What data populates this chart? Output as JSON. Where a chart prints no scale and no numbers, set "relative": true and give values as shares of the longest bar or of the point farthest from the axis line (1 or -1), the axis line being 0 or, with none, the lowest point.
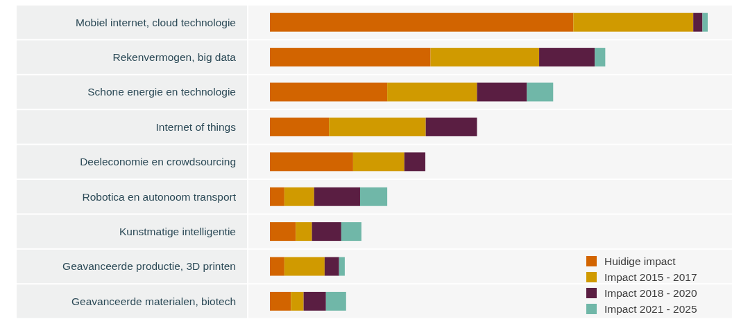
{
  "chart_data": {
    "type": "bar",
    "orientation": "horizontal",
    "stacked": true,
    "relative": true,
    "legend": "bottom right",
    "categories": [
      "Mobiel internet, cloud technologie",
      "Rekenvermogen, big data",
      "Schone energie en technologie",
      "Internet of things",
      "Deeleconomie en crowdsourcing",
      "Robotica en autonoom transport",
      "Kunstmatige intelligentie",
      "Geavanceerde productie, 3D printen",
      "Geavanceerde materialen, biotech"
    ],
    "series": [
      {
        "name": "Huidige impact",
        "color": "#d26400",
        "values": [
          0.693,
          0.367,
          0.268,
          0.135,
          0.19,
          0.033,
          0.059,
          0.033,
          0.048
        ]
      },
      {
        "name": "Impact 2015 - 2017",
        "color": "#d09a00",
        "values": [
          0.274,
          0.248,
          0.205,
          0.221,
          0.117,
          0.068,
          0.037,
          0.092,
          0.029
        ]
      },
      {
        "name": "Impact 2018 - 2020",
        "color": "#5a1e42",
        "values": [
          0.021,
          0.127,
          0.114,
          0.117,
          0.048,
          0.105,
          0.067,
          0.033,
          0.051
        ]
      },
      {
        "name": "Impact 2021 - 2025",
        "color": "#70b7a8",
        "values": [
          0.012,
          0.024,
          0.06,
          null,
          null,
          0.062,
          0.046,
          0.013,
          0.046
        ]
      }
    ]
  }
}
